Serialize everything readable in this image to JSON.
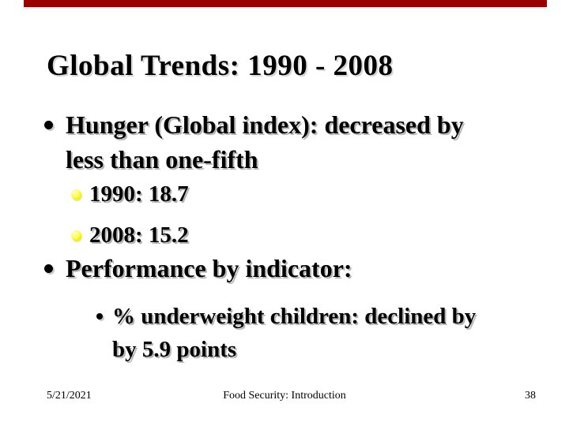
{
  "slide": {
    "title": "Global Trends: 1990 - 2008",
    "colors": {
      "background": "#ffffff",
      "accent_bar": "#990000",
      "text": "#000000",
      "level2_bullet": "#ffff33"
    },
    "bullets": [
      {
        "level": 1,
        "lines": [
          "Hunger (Global index): decreased by",
          "less than one-fifth"
        ]
      },
      {
        "level": 2,
        "lines": [
          "1990: 18.7"
        ]
      },
      {
        "level": 2,
        "lines": [
          "2008: 15.2"
        ]
      },
      {
        "level": 1,
        "lines": [
          "Performance by indicator:"
        ]
      },
      {
        "level": 3,
        "lines": [
          "% underweight children: declined by",
          "by 5.9 points"
        ]
      }
    ],
    "footer": {
      "date": "5/21/2021",
      "center_text": "Food Security: Introduction",
      "page_number": "38"
    }
  }
}
